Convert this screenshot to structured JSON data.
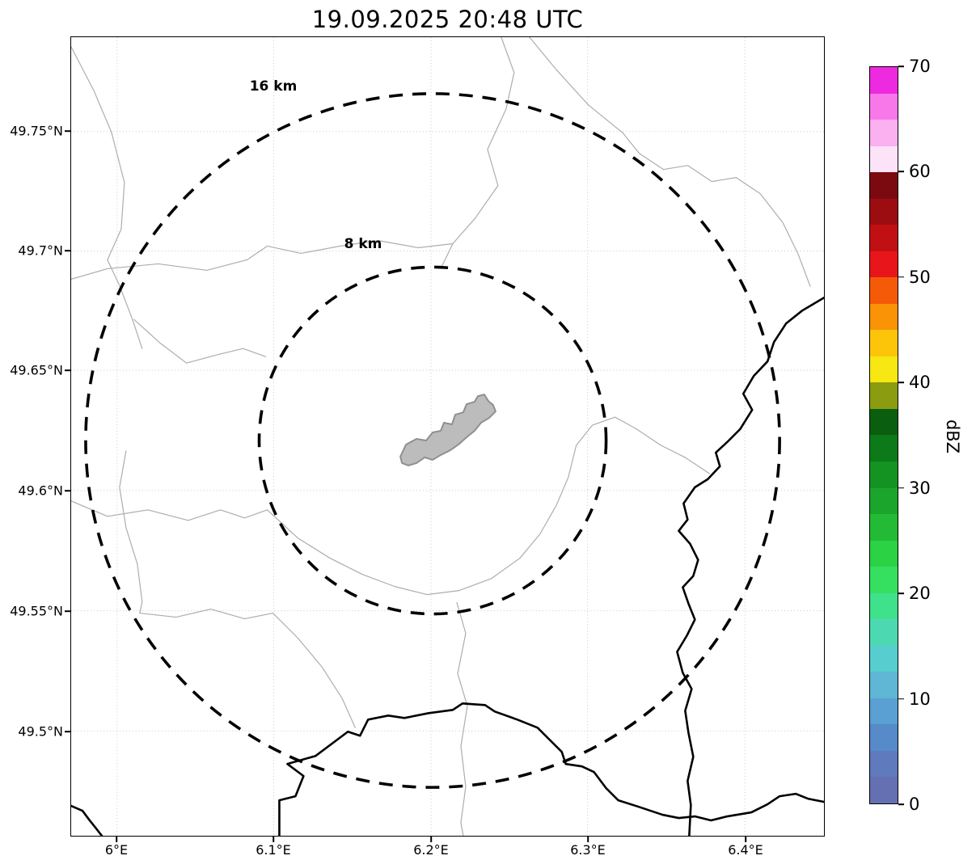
{
  "title": "19.09.2025 20:48 UTC",
  "map": {
    "x_tick_labels": [
      "6°E",
      "6.1°E",
      "6.2°E",
      "6.3°E",
      "6.4°E"
    ],
    "y_tick_labels": [
      "49.75°N",
      "49.7°N",
      "49.65°N",
      "49.6°N",
      "49.55°N",
      "49.5°N"
    ],
    "range_rings": [
      {
        "label": "16 km"
      },
      {
        "label": "8 km"
      }
    ]
  },
  "colorbar": {
    "label": "dBZ",
    "tick_labels": [
      "70",
      "60",
      "50",
      "40",
      "30",
      "20",
      "10",
      "0"
    ],
    "segment_colors_top_to_bottom": [
      "#ee2ae0",
      "#f878e9",
      "#fbb0f0",
      "#fde3f8",
      "#7a0a10",
      "#9c0d12",
      "#c11014",
      "#e8161a",
      "#f55a08",
      "#fa9306",
      "#fcc50a",
      "#f7e713",
      "#8c9c10",
      "#0a5e10",
      "#0c7a18",
      "#149323",
      "#1ca52c",
      "#23bb35",
      "#2bd244",
      "#35e060",
      "#3fe18b",
      "#4cd9b2",
      "#57cdd0",
      "#5fb6d5",
      "#5aa0d3",
      "#568ac8",
      "#5f7bbd",
      "#6570b2"
    ]
  },
  "colors": {
    "range_ring": "#000000",
    "country_border": "#000000",
    "admin_boundary": "#adadad",
    "city_fill": "#bcbcbc",
    "city_outline": "#8f8f8f",
    "grid": "#c9c9c9",
    "background": "#ffffff"
  },
  "chart_data": {
    "type": "heatmap",
    "title": "19.09.2025 20:48 UTC",
    "x_axis": {
      "label": "",
      "tick_labels": [
        "6°E",
        "6.1°E",
        "6.2°E",
        "6.3°E",
        "6.4°E"
      ]
    },
    "y_axis": {
      "label": "",
      "tick_labels": [
        "49.75°N",
        "49.7°N",
        "49.65°N",
        "49.6°N",
        "49.55°N",
        "49.5°N"
      ]
    },
    "colorbar": {
      "label": "dBZ",
      "ticks": [
        0,
        10,
        20,
        30,
        40,
        50,
        60,
        70
      ],
      "min": 0,
      "max": 70
    },
    "range_rings_km": [
      8,
      16
    ],
    "visible_echoes": []
  }
}
